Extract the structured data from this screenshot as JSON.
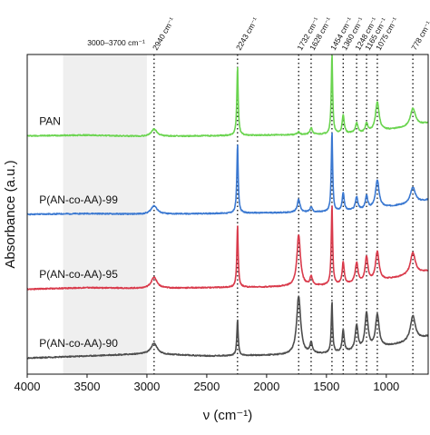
{
  "chart_data": {
    "type": "line",
    "xlabel": "ν (cm⁻¹)",
    "ylabel": "Absorbance (a.u.)",
    "x_reversed": true,
    "xlim": [
      4000,
      650
    ],
    "ylim": [
      -0.2,
      4.2
    ],
    "x_ticks": [
      4000,
      3500,
      3000,
      2500,
      2000,
      1500,
      1000
    ],
    "x_tick_labels": [
      "4000",
      "3500",
      "3000",
      "2500",
      "2000",
      "1500",
      "1000"
    ],
    "y_ticks_shown": false,
    "shaded_region": {
      "range": [
        3700,
        3000
      ],
      "label": "3000–3700 cm⁻¹",
      "color": "#efefef"
    },
    "reference_lines": [
      {
        "x": 2940,
        "label": "2940 cm⁻¹"
      },
      {
        "x": 2243,
        "label": "2243 cm⁻¹"
      },
      {
        "x": 1732,
        "label": "1732 cm⁻¹"
      },
      {
        "x": 1628,
        "label": "1628 cm⁻¹"
      },
      {
        "x": 1454,
        "label": "1454 cm⁻¹"
      },
      {
        "x": 1360,
        "label": "1360 cm⁻¹"
      },
      {
        "x": 1248,
        "label": "1248 cm⁻¹"
      },
      {
        "x": 1165,
        "label": "1165 cm⁻¹"
      },
      {
        "x": 1075,
        "label": "1075 cm⁻¹"
      },
      {
        "x": 778,
        "label": "778 cm⁻¹"
      }
    ],
    "series": [
      {
        "name": "PAN",
        "color": "#6ad44f",
        "baseline": [
          [
            4000,
            3.08
          ],
          [
            3500,
            3.09
          ],
          [
            3000,
            3.07
          ],
          [
            2500,
            3.08
          ],
          [
            2000,
            3.09
          ],
          [
            1500,
            3.1
          ],
          [
            1200,
            3.12
          ],
          [
            1000,
            3.16
          ],
          [
            800,
            3.2
          ],
          [
            650,
            3.26
          ]
        ],
        "peaks": [
          [
            2940,
            0.1,
            30
          ],
          [
            2243,
            0.95,
            7
          ],
          [
            1732,
            0.04,
            12
          ],
          [
            1628,
            0.09,
            12
          ],
          [
            1454,
            1.1,
            7
          ],
          [
            1360,
            0.25,
            10
          ],
          [
            1248,
            0.14,
            12
          ],
          [
            1165,
            0.12,
            12
          ],
          [
            1075,
            0.4,
            18
          ],
          [
            778,
            0.25,
            25
          ]
        ]
      },
      {
        "name": "P(AN-co-AA)-99",
        "color": "#3a78d1",
        "baseline": [
          [
            4000,
            2.0
          ],
          [
            3500,
            2.01
          ],
          [
            3000,
            2.0
          ],
          [
            2500,
            2.01
          ],
          [
            2000,
            2.02
          ],
          [
            1500,
            2.03
          ],
          [
            1200,
            2.06
          ],
          [
            1000,
            2.1
          ],
          [
            800,
            2.14
          ],
          [
            650,
            2.2
          ]
        ],
        "peaks": [
          [
            2940,
            0.12,
            30
          ],
          [
            2243,
            0.95,
            7
          ],
          [
            1732,
            0.18,
            14
          ],
          [
            1628,
            0.07,
            12
          ],
          [
            1454,
            1.1,
            7
          ],
          [
            1360,
            0.25,
            10
          ],
          [
            1248,
            0.18,
            12
          ],
          [
            1165,
            0.18,
            12
          ],
          [
            1075,
            0.38,
            18
          ],
          [
            778,
            0.22,
            25
          ]
        ]
      },
      {
        "name": "P(AN-co-AA)-95",
        "color": "#d93a4b",
        "baseline": [
          [
            4000,
            0.97
          ],
          [
            3500,
            0.99
          ],
          [
            3000,
            0.98
          ],
          [
            2500,
            0.99
          ],
          [
            2000,
            1.0
          ],
          [
            1500,
            1.02
          ],
          [
            1200,
            1.05
          ],
          [
            1000,
            1.1
          ],
          [
            800,
            1.16
          ],
          [
            650,
            1.22
          ]
        ],
        "peaks": [
          [
            2940,
            0.15,
            30
          ],
          [
            2243,
            0.85,
            7
          ],
          [
            1732,
            0.7,
            18
          ],
          [
            1628,
            0.12,
            12
          ],
          [
            1454,
            1.1,
            7
          ],
          [
            1360,
            0.3,
            10
          ],
          [
            1248,
            0.28,
            14
          ],
          [
            1165,
            0.35,
            14
          ],
          [
            1075,
            0.4,
            18
          ],
          [
            778,
            0.3,
            25
          ]
        ]
      },
      {
        "name": "P(AN-co-AA)-90",
        "color": "#4d4d4d",
        "baseline": [
          [
            4000,
            0.02
          ],
          [
            3500,
            0.05
          ],
          [
            3000,
            0.08
          ],
          [
            2500,
            0.05
          ],
          [
            2000,
            0.06
          ],
          [
            1500,
            0.08
          ],
          [
            1200,
            0.12
          ],
          [
            1000,
            0.18
          ],
          [
            800,
            0.24
          ],
          [
            650,
            0.32
          ]
        ],
        "peaks": [
          [
            2940,
            0.15,
            30
          ],
          [
            2243,
            0.5,
            7
          ],
          [
            1732,
            0.8,
            20
          ],
          [
            1628,
            0.15,
            12
          ],
          [
            1454,
            0.7,
            7
          ],
          [
            1360,
            0.3,
            10
          ],
          [
            1248,
            0.35,
            14
          ],
          [
            1165,
            0.5,
            16
          ],
          [
            1075,
            0.45,
            18
          ],
          [
            778,
            0.35,
            25
          ]
        ]
      }
    ],
    "series_labels_at_x": 3900
  }
}
